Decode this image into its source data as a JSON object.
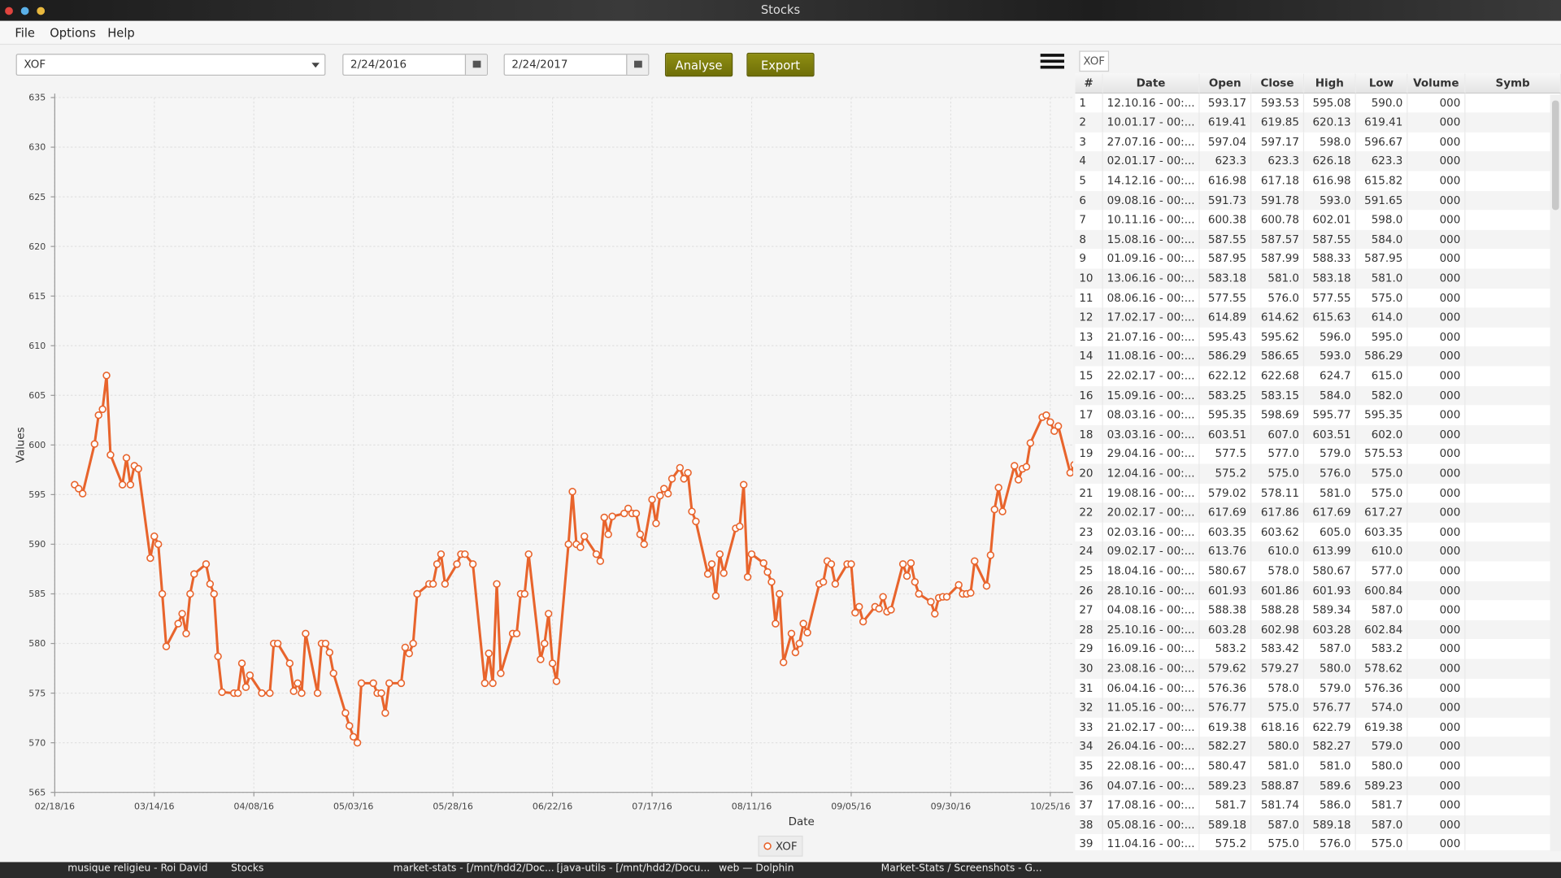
{
  "window": {
    "title": "Stocks"
  },
  "menu": [
    "File",
    "Options",
    "Help"
  ],
  "toolbar": {
    "symbol": "XOF",
    "from": "2/24/2016",
    "to": "2/24/2017",
    "analyse": "Analyse",
    "export": "Export"
  },
  "chart_data": {
    "type": "line",
    "ylabel": "Values",
    "xlabel": "Date",
    "grid": true,
    "legend": "bottom",
    "x": [
      "2016-02-23",
      "2016-02-24",
      "2016-02-25",
      "2016-02-28",
      "2016-02-29",
      "2016-03-01",
      "2016-03-02",
      "2016-03-03",
      "2016-03-06",
      "2016-03-07",
      "2016-03-08",
      "2016-03-09",
      "2016-03-10",
      "2016-03-13",
      "2016-03-14",
      "2016-03-15",
      "2016-03-16",
      "2016-03-17",
      "2016-03-20",
      "2016-03-21",
      "2016-03-22",
      "2016-03-23",
      "2016-03-24",
      "2016-03-27",
      "2016-03-28",
      "2016-03-29",
      "2016-03-30",
      "2016-03-31",
      "2016-04-03",
      "2016-04-04",
      "2016-04-05",
      "2016-04-06",
      "2016-04-07",
      "2016-04-10",
      "2016-04-12",
      "2016-04-13",
      "2016-04-14",
      "2016-04-17",
      "2016-04-18",
      "2016-04-19",
      "2016-04-20",
      "2016-04-21",
      "2016-04-24",
      "2016-04-25",
      "2016-04-26",
      "2016-04-27",
      "2016-04-28",
      "2016-05-01",
      "2016-05-02",
      "2016-05-03",
      "2016-05-04",
      "2016-05-05",
      "2016-05-08",
      "2016-05-09",
      "2016-05-10",
      "2016-05-11",
      "2016-05-12",
      "2016-05-15",
      "2016-05-16",
      "2016-05-17",
      "2016-05-18",
      "2016-05-19",
      "2016-05-22",
      "2016-05-23",
      "2016-05-24",
      "2016-05-25",
      "2016-05-26",
      "2016-05-29",
      "2016-05-30",
      "2016-05-31",
      "2016-06-02",
      "2016-06-05",
      "2016-06-06",
      "2016-06-07",
      "2016-06-08",
      "2016-06-09",
      "2016-06-12",
      "2016-06-13",
      "2016-06-14",
      "2016-06-15",
      "2016-06-16",
      "2016-06-19",
      "2016-06-20",
      "2016-06-21",
      "2016-06-22",
      "2016-06-23",
      "2016-06-26",
      "2016-06-27",
      "2016-06-28",
      "2016-06-29",
      "2016-06-30",
      "2016-07-03",
      "2016-07-04",
      "2016-07-05",
      "2016-07-06",
      "2016-07-07",
      "2016-07-10",
      "2016-07-11",
      "2016-07-12",
      "2016-07-13",
      "2016-07-14",
      "2016-07-15",
      "2016-07-17",
      "2016-07-18",
      "2016-07-19",
      "2016-07-20",
      "2016-07-21",
      "2016-07-22",
      "2016-07-24",
      "2016-07-25",
      "2016-07-26",
      "2016-07-27",
      "2016-07-28",
      "2016-07-31",
      "2016-08-01",
      "2016-08-02",
      "2016-08-03",
      "2016-08-04",
      "2016-08-07",
      "2016-08-08",
      "2016-08-09",
      "2016-08-10",
      "2016-08-11",
      "2016-08-14",
      "2016-08-15",
      "2016-08-16",
      "2016-08-17",
      "2016-08-18",
      "2016-08-19",
      "2016-08-21",
      "2016-08-22",
      "2016-08-23",
      "2016-08-24",
      "2016-08-25",
      "2016-08-28",
      "2016-08-29",
      "2016-08-30",
      "2016-08-31",
      "2016-09-01",
      "2016-09-04",
      "2016-09-05",
      "2016-09-06",
      "2016-09-07",
      "2016-09-08",
      "2016-09-11",
      "2016-09-12",
      "2016-09-13",
      "2016-09-14",
      "2016-09-15",
      "2016-09-18",
      "2016-09-19",
      "2016-09-20",
      "2016-09-21",
      "2016-09-22",
      "2016-09-25",
      "2016-09-26",
      "2016-09-27",
      "2016-09-28",
      "2016-09-29",
      "2016-10-02",
      "2016-10-03",
      "2016-10-04",
      "2016-10-05",
      "2016-10-06",
      "2016-10-09",
      "2016-10-10",
      "2016-10-11",
      "2016-10-12",
      "2016-10-13",
      "2016-10-16",
      "2016-10-17",
      "2016-10-18",
      "2016-10-19",
      "2016-10-20",
      "2016-10-23",
      "2016-10-24",
      "2016-10-25",
      "2016-10-26",
      "2016-10-27",
      "2016-10-30",
      "2016-10-31"
    ],
    "series": [
      {
        "name": "XOF",
        "color": "#e8642c",
        "values": [
          596,
          595.6,
          595.1,
          600.1,
          603,
          603.6,
          607,
          599,
          596,
          598.7,
          596,
          597.9,
          597.6,
          588.6,
          590.8,
          590,
          585,
          579.7,
          582,
          583,
          581,
          585,
          587,
          588,
          586,
          585,
          578.7,
          575.1,
          575,
          575,
          578,
          575.6,
          576.8,
          575,
          575,
          580,
          580,
          578,
          575.2,
          576,
          575,
          581,
          575,
          580,
          580,
          579.1,
          577,
          573,
          571.7,
          570.6,
          570,
          576,
          576,
          575,
          575,
          573,
          576,
          576,
          579.6,
          579,
          580,
          585,
          586,
          586,
          588,
          589,
          586,
          588,
          589,
          589,
          588,
          576,
          579,
          576,
          586,
          577,
          581,
          581,
          585,
          585,
          589,
          578.4,
          580,
          583,
          578,
          576.2,
          590,
          595.3,
          590,
          589.7,
          590.8,
          589,
          588.3,
          592.7,
          591,
          592.8,
          593.1,
          593.6,
          593.1,
          593.1,
          591,
          590,
          594.5,
          592.1,
          594.9,
          595.6,
          595.1,
          596.6,
          597.7,
          596.6,
          597.2,
          593.3,
          592.3,
          587,
          588,
          584.8,
          589,
          587.1,
          591.6,
          591.8,
          596,
          586.7,
          589,
          588.1,
          587.2,
          586.2,
          582,
          585,
          578.1,
          581,
          579.1,
          580,
          582,
          581.1,
          586,
          586.2,
          588.3,
          588,
          586,
          588,
          588,
          583.1,
          583.7,
          582.2,
          583.7,
          583.5,
          584.7,
          583.2,
          583.4,
          588,
          586.8,
          588.1,
          586.2,
          585,
          584.2,
          583,
          584.6,
          584.7,
          584.7,
          585.9,
          585,
          585,
          585.1,
          588.3,
          585.8,
          588.9,
          593.5,
          595.7,
          593.3,
          597.9,
          596.5,
          597.6,
          597.8,
          600.2,
          602.8,
          603,
          602.3,
          601.4,
          601.9,
          597.2,
          598
        ]
      }
    ],
    "xlim": [
      "2016-02-18",
      "2016-10-31"
    ],
    "xticks": [
      {
        "value": "2016-02-18",
        "label": "02/18/16"
      },
      {
        "value": "2016-03-14",
        "label": "03/14/16"
      },
      {
        "value": "2016-04-08",
        "label": "04/08/16"
      },
      {
        "value": "2016-05-03",
        "label": "05/03/16"
      },
      {
        "value": "2016-05-28",
        "label": "05/28/16"
      },
      {
        "value": "2016-06-22",
        "label": "06/22/16"
      },
      {
        "value": "2016-07-17",
        "label": "07/17/16"
      },
      {
        "value": "2016-08-11",
        "label": "08/11/16"
      },
      {
        "value": "2016-09-05",
        "label": "09/05/16"
      },
      {
        "value": "2016-09-30",
        "label": "09/30/16"
      },
      {
        "value": "2016-10-25",
        "label": "10/25/16"
      }
    ],
    "ylim": [
      565,
      635
    ],
    "yticks": [
      565,
      570,
      575,
      580,
      585,
      590,
      595,
      600,
      605,
      610,
      615,
      620,
      625,
      630,
      635
    ]
  },
  "table": {
    "tab": "XOF",
    "columns": [
      "#",
      "Date",
      "Open",
      "Close",
      "High",
      "Low",
      "Volume",
      "Symb"
    ],
    "rows": [
      [
        "1",
        "12.10.16 - 00:...",
        "593.17",
        "593.53",
        "595.08",
        "590.0",
        "000"
      ],
      [
        "2",
        "10.01.17 - 00:...",
        "619.41",
        "619.85",
        "620.13",
        "619.41",
        "000"
      ],
      [
        "3",
        "27.07.16 - 00:...",
        "597.04",
        "597.17",
        "598.0",
        "596.67",
        "000"
      ],
      [
        "4",
        "02.01.17 - 00:...",
        "623.3",
        "623.3",
        "626.18",
        "623.3",
        "000"
      ],
      [
        "5",
        "14.12.16 - 00:...",
        "616.98",
        "617.18",
        "616.98",
        "615.82",
        "000"
      ],
      [
        "6",
        "09.08.16 - 00:...",
        "591.73",
        "591.78",
        "593.0",
        "591.65",
        "000"
      ],
      [
        "7",
        "10.11.16 - 00:...",
        "600.38",
        "600.78",
        "602.01",
        "598.0",
        "000"
      ],
      [
        "8",
        "15.08.16 - 00:...",
        "587.55",
        "587.57",
        "587.55",
        "584.0",
        "000"
      ],
      [
        "9",
        "01.09.16 - 00:...",
        "587.95",
        "587.99",
        "588.33",
        "587.95",
        "000"
      ],
      [
        "10",
        "13.06.16 - 00:...",
        "583.18",
        "581.0",
        "583.18",
        "581.0",
        "000"
      ],
      [
        "11",
        "08.06.16 - 00:...",
        "577.55",
        "576.0",
        "577.55",
        "575.0",
        "000"
      ],
      [
        "12",
        "17.02.17 - 00:...",
        "614.89",
        "614.62",
        "615.63",
        "614.0",
        "000"
      ],
      [
        "13",
        "21.07.16 - 00:...",
        "595.43",
        "595.62",
        "596.0",
        "595.0",
        "000"
      ],
      [
        "14",
        "11.08.16 - 00:...",
        "586.29",
        "586.65",
        "593.0",
        "586.29",
        "000"
      ],
      [
        "15",
        "22.02.17 - 00:...",
        "622.12",
        "622.68",
        "624.7",
        "615.0",
        "000"
      ],
      [
        "16",
        "15.09.16 - 00:...",
        "583.25",
        "583.15",
        "584.0",
        "582.0",
        "000"
      ],
      [
        "17",
        "08.03.16 - 00:...",
        "595.35",
        "598.69",
        "595.77",
        "595.35",
        "000"
      ],
      [
        "18",
        "03.03.16 - 00:...",
        "603.51",
        "607.0",
        "603.51",
        "602.0",
        "000"
      ],
      [
        "19",
        "29.04.16 - 00:...",
        "577.5",
        "577.0",
        "579.0",
        "575.53",
        "000"
      ],
      [
        "20",
        "12.04.16 - 00:...",
        "575.2",
        "575.0",
        "576.0",
        "575.0",
        "000"
      ],
      [
        "21",
        "19.08.16 - 00:...",
        "579.02",
        "578.11",
        "581.0",
        "575.0",
        "000"
      ],
      [
        "22",
        "20.02.17 - 00:...",
        "617.69",
        "617.86",
        "617.69",
        "617.27",
        "000"
      ],
      [
        "23",
        "02.03.16 - 00:...",
        "603.35",
        "603.62",
        "605.0",
        "603.35",
        "000"
      ],
      [
        "24",
        "09.02.17 - 00:...",
        "613.76",
        "610.0",
        "613.99",
        "610.0",
        "000"
      ],
      [
        "25",
        "18.04.16 - 00:...",
        "580.67",
        "578.0",
        "580.67",
        "577.0",
        "000"
      ],
      [
        "26",
        "28.10.16 - 00:...",
        "601.93",
        "601.86",
        "601.93",
        "600.84",
        "000"
      ],
      [
        "27",
        "04.08.16 - 00:...",
        "588.38",
        "588.28",
        "589.34",
        "587.0",
        "000"
      ],
      [
        "28",
        "25.10.16 - 00:...",
        "603.28",
        "602.98",
        "603.28",
        "602.84",
        "000"
      ],
      [
        "29",
        "16.09.16 - 00:...",
        "583.2",
        "583.42",
        "587.0",
        "583.2",
        "000"
      ],
      [
        "30",
        "23.08.16 - 00:...",
        "579.62",
        "579.27",
        "580.0",
        "578.62",
        "000"
      ],
      [
        "31",
        "06.04.16 - 00:...",
        "576.36",
        "578.0",
        "579.0",
        "576.36",
        "000"
      ],
      [
        "32",
        "11.05.16 - 00:...",
        "576.77",
        "575.0",
        "576.77",
        "574.0",
        "000"
      ],
      [
        "33",
        "21.02.17 - 00:...",
        "619.38",
        "618.16",
        "622.79",
        "619.38",
        "000"
      ],
      [
        "34",
        "26.04.16 - 00:...",
        "582.27",
        "580.0",
        "582.27",
        "579.0",
        "000"
      ],
      [
        "35",
        "22.08.16 - 00:...",
        "580.47",
        "581.0",
        "581.0",
        "580.0",
        "000"
      ],
      [
        "36",
        "04.07.16 - 00:...",
        "589.23",
        "588.87",
        "589.6",
        "589.23",
        "000"
      ],
      [
        "37",
        "17.08.16 - 00:...",
        "581.7",
        "581.74",
        "586.0",
        "581.7",
        "000"
      ],
      [
        "38",
        "05.08.16 - 00:...",
        "589.18",
        "587.0",
        "589.18",
        "587.0",
        "000"
      ],
      [
        "39",
        "11.04.16 - 00:...",
        "575.2",
        "575.0",
        "576.0",
        "575.0",
        "000"
      ]
    ]
  },
  "taskbar": {
    "items": [
      "musique religieu - Roi David",
      "Stocks",
      "market-stats - [/mnt/hdd2/Doc...",
      "[java-utils - [/mnt/hdd2/Docu...",
      "web — Dolphin",
      "Market-Stats / Screenshots - G..."
    ]
  }
}
